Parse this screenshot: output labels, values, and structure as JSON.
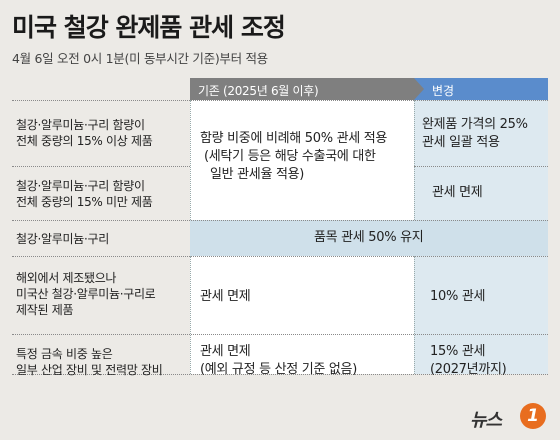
{
  "title": "미국 철강 완제품 관세 조정",
  "subtitle": "4월 6일 오전 0시 1분(미 동부시간 기준)부터 적용",
  "headers": {
    "previous": "기존 (2025년 6월 이후)",
    "changed": "변경"
  },
  "rows": [
    {
      "label": [
        "철강·알루미늄·구리 함량이",
        "전체 중량의 15% 이상 제품"
      ],
      "changed": [
        "완제품 가격의 25%",
        "관세 일괄 적용"
      ]
    },
    {
      "label": [
        "철강·알루미늄·구리 함량이",
        "전체 중량의 15% 미만 제품"
      ],
      "changed": [
        "관세 면제"
      ]
    },
    {
      "label": [
        "철강·알루미늄·구리"
      ],
      "merged": "품목 관세 50% 유지"
    },
    {
      "label": [
        "해외에서 제조됐으나",
        "미국산 철강·알루미늄·구리로",
        "제작된 제품"
      ],
      "previous": [
        "관세 면제"
      ],
      "changed": [
        "10% 관세"
      ]
    },
    {
      "label": [
        "특정 금속 비중 높은",
        "일부 산업 장비 및 전력망 장비"
      ],
      "previous": [
        "관세 면제",
        "(예외 규정 등 산정 기준 없음)"
      ],
      "changed": [
        "15% 관세",
        "(2027년까지)"
      ]
    }
  ],
  "shared_previous": [
    "함량 비중에 비례해 50% 관세 적용",
    "(세탁기 등은 해당 수출국에 대한",
    "일반 관세율 적용)"
  ],
  "logo": {
    "text": "뉴스",
    "badge": "1"
  }
}
